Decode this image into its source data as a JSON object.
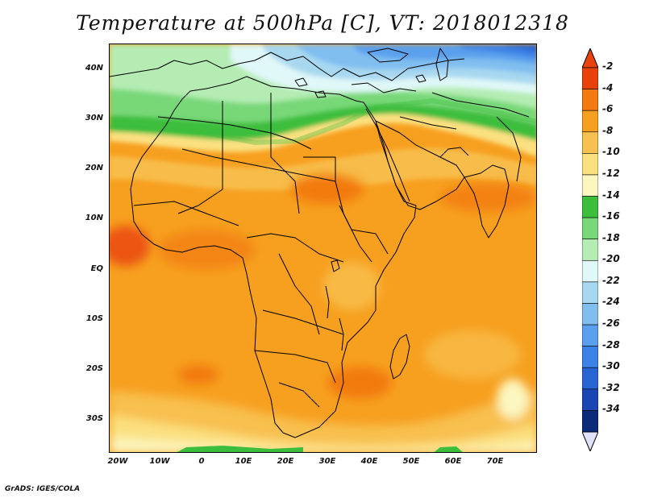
{
  "title": "Temperature at 500hPa [C], VT: 2018012318",
  "footer": "GrADS: IGES/COLA",
  "lat_labels": [
    "40N",
    "30N",
    "20N",
    "10N",
    "EQ",
    "10S",
    "20S",
    "30S"
  ],
  "lon_labels": [
    "20W",
    "10W",
    "0",
    "10E",
    "20E",
    "30E",
    "40E",
    "50E",
    "60E",
    "70E"
  ],
  "colorbar": {
    "labels": [
      "-2",
      "-4",
      "-6",
      "-8",
      "-10",
      "-12",
      "-14",
      "-16",
      "-18",
      "-20",
      "-22",
      "-24",
      "-26",
      "-28",
      "-30",
      "-32",
      "-34"
    ],
    "colors": [
      "#e8420a",
      "#f27a10",
      "#f7a020",
      "#f8c050",
      "#fbe080",
      "#fcf6c0",
      "#3cbe3c",
      "#78d878",
      "#b4ecb4",
      "#e0f8f8",
      "#a8d8f0",
      "#80bef0",
      "#5aa0ec",
      "#3c82e6",
      "#2864d2",
      "#1a46b4",
      "#0c2a7a"
    ],
    "top_arrow_color": "#e8420a",
    "bottom_arrow_color": "#e0e0f8"
  }
}
